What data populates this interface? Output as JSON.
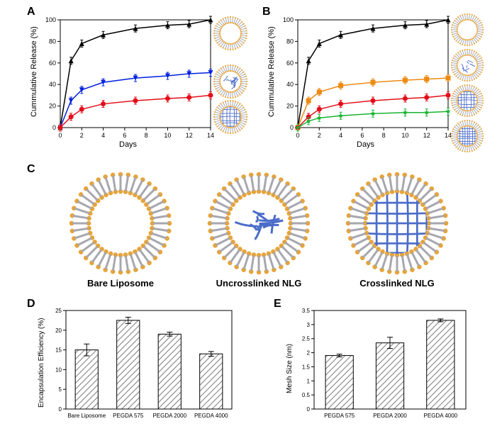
{
  "panels": {
    "A": {
      "label": "A"
    },
    "B": {
      "label": "B"
    },
    "C": {
      "label": "C"
    },
    "D": {
      "label": "D"
    },
    "E": {
      "label": "E"
    }
  },
  "chartA": {
    "type": "line",
    "xlabel": "Days",
    "ylabel": "Cummulative Release (%)",
    "xlim": [
      0,
      14
    ],
    "ylim": [
      0,
      100
    ],
    "xticks": [
      0,
      2,
      4,
      6,
      8,
      10,
      12,
      14
    ],
    "yticks": [
      0,
      20,
      40,
      60,
      80,
      100
    ],
    "series": [
      {
        "name": "black",
        "color": "#000000",
        "marker": "triangle",
        "data": [
          [
            0,
            0
          ],
          [
            1,
            62
          ],
          [
            2,
            78
          ],
          [
            4,
            86
          ],
          [
            7,
            92
          ],
          [
            10,
            95
          ],
          [
            12,
            96
          ],
          [
            14,
            100
          ]
        ]
      },
      {
        "name": "blue",
        "color": "#0020dd",
        "marker": "invtriangle",
        "data": [
          [
            0,
            0
          ],
          [
            1,
            25
          ],
          [
            2,
            35
          ],
          [
            4,
            42
          ],
          [
            7,
            46
          ],
          [
            10,
            48
          ],
          [
            12,
            50
          ],
          [
            14,
            51
          ]
        ]
      },
      {
        "name": "red",
        "color": "#e30e1a",
        "marker": "circle",
        "data": [
          [
            0,
            0
          ],
          [
            1,
            10
          ],
          [
            2,
            17
          ],
          [
            4,
            22
          ],
          [
            7,
            25
          ],
          [
            10,
            27
          ],
          [
            12,
            28
          ],
          [
            14,
            30
          ]
        ]
      }
    ],
    "label_fontsize": 11,
    "tick_fontsize": 9,
    "grid_color": "#000000",
    "background": "#ffffff"
  },
  "chartB": {
    "type": "line",
    "xlabel": "Days",
    "ylabel": "Cummulative Release (%)",
    "xlim": [
      0,
      14
    ],
    "ylim": [
      0,
      100
    ],
    "xticks": [
      0,
      2,
      4,
      6,
      8,
      10,
      12,
      14
    ],
    "yticks": [
      0,
      20,
      40,
      60,
      80,
      100
    ],
    "series": [
      {
        "name": "black",
        "color": "#000000",
        "marker": "triangle",
        "data": [
          [
            0,
            0
          ],
          [
            1,
            62
          ],
          [
            2,
            78
          ],
          [
            4,
            86
          ],
          [
            7,
            92
          ],
          [
            10,
            95
          ],
          [
            12,
            96
          ],
          [
            14,
            100
          ]
        ]
      },
      {
        "name": "orange",
        "color": "#ed8a12",
        "marker": "square",
        "data": [
          [
            0,
            0
          ],
          [
            1,
            25
          ],
          [
            2,
            33
          ],
          [
            4,
            39
          ],
          [
            7,
            42
          ],
          [
            10,
            44
          ],
          [
            12,
            45
          ],
          [
            14,
            46
          ]
        ]
      },
      {
        "name": "red",
        "color": "#e30e1a",
        "marker": "circle",
        "data": [
          [
            0,
            0
          ],
          [
            1,
            10
          ],
          [
            2,
            17
          ],
          [
            4,
            22
          ],
          [
            7,
            25
          ],
          [
            10,
            27
          ],
          [
            12,
            28
          ],
          [
            14,
            30
          ]
        ]
      },
      {
        "name": "green",
        "color": "#19b42f",
        "marker": "star",
        "data": [
          [
            0,
            0
          ],
          [
            1,
            6
          ],
          [
            2,
            9
          ],
          [
            4,
            11
          ],
          [
            7,
            13
          ],
          [
            10,
            14
          ],
          [
            12,
            14
          ],
          [
            14,
            15
          ]
        ]
      }
    ],
    "label_fontsize": 11,
    "tick_fontsize": 9,
    "grid_color": "#000000",
    "background": "#ffffff"
  },
  "diagrams": {
    "bare": {
      "label": "Bare Liposome",
      "fill": "#ffffff"
    },
    "uncross": {
      "label": "Uncrosslinked NLG",
      "fill": "#ffffff"
    },
    "cross": {
      "label": "Crosslinked NLG",
      "fill": "#ffffff"
    },
    "membrane_inner": "#e6a43a",
    "membrane_line": "#a7a7b0",
    "fiber_color": "#4b6cc9"
  },
  "chartD": {
    "type": "bar",
    "ylabel": "Encapsulation Efficiency (%)",
    "categories": [
      "Bare Liposome",
      "PEGDA 575",
      "PEGDA 2000",
      "PEGDA 4000"
    ],
    "values": [
      15,
      22.5,
      19,
      14
    ],
    "errors": [
      1.5,
      0.8,
      0.5,
      0.6
    ],
    "ylim": [
      0,
      25
    ],
    "ytick_step": 5,
    "bar_color": "#7b7b7b",
    "hatch": "diag",
    "background": "#ffffff",
    "label_fontsize": 11,
    "tick_fontsize": 8
  },
  "chartE": {
    "type": "bar",
    "ylabel": "Mesh Size (nm)",
    "categories": [
      "PEGDA 575",
      "PEGDA 2000",
      "PEGDA 4000"
    ],
    "values": [
      1.9,
      2.35,
      3.15
    ],
    "errors": [
      0.05,
      0.2,
      0.05
    ],
    "ylim": [
      0,
      3.5
    ],
    "ytick_step": 0.5,
    "bar_color": "#7b7b7b",
    "hatch": "diag",
    "background": "#ffffff",
    "label_fontsize": 11,
    "tick_fontsize": 8
  },
  "liposome_icons": {
    "membrane_outer": "#e6a43a",
    "membrane_inner_ring": "#b8b8c4",
    "fiber": "#4b6cc9"
  }
}
